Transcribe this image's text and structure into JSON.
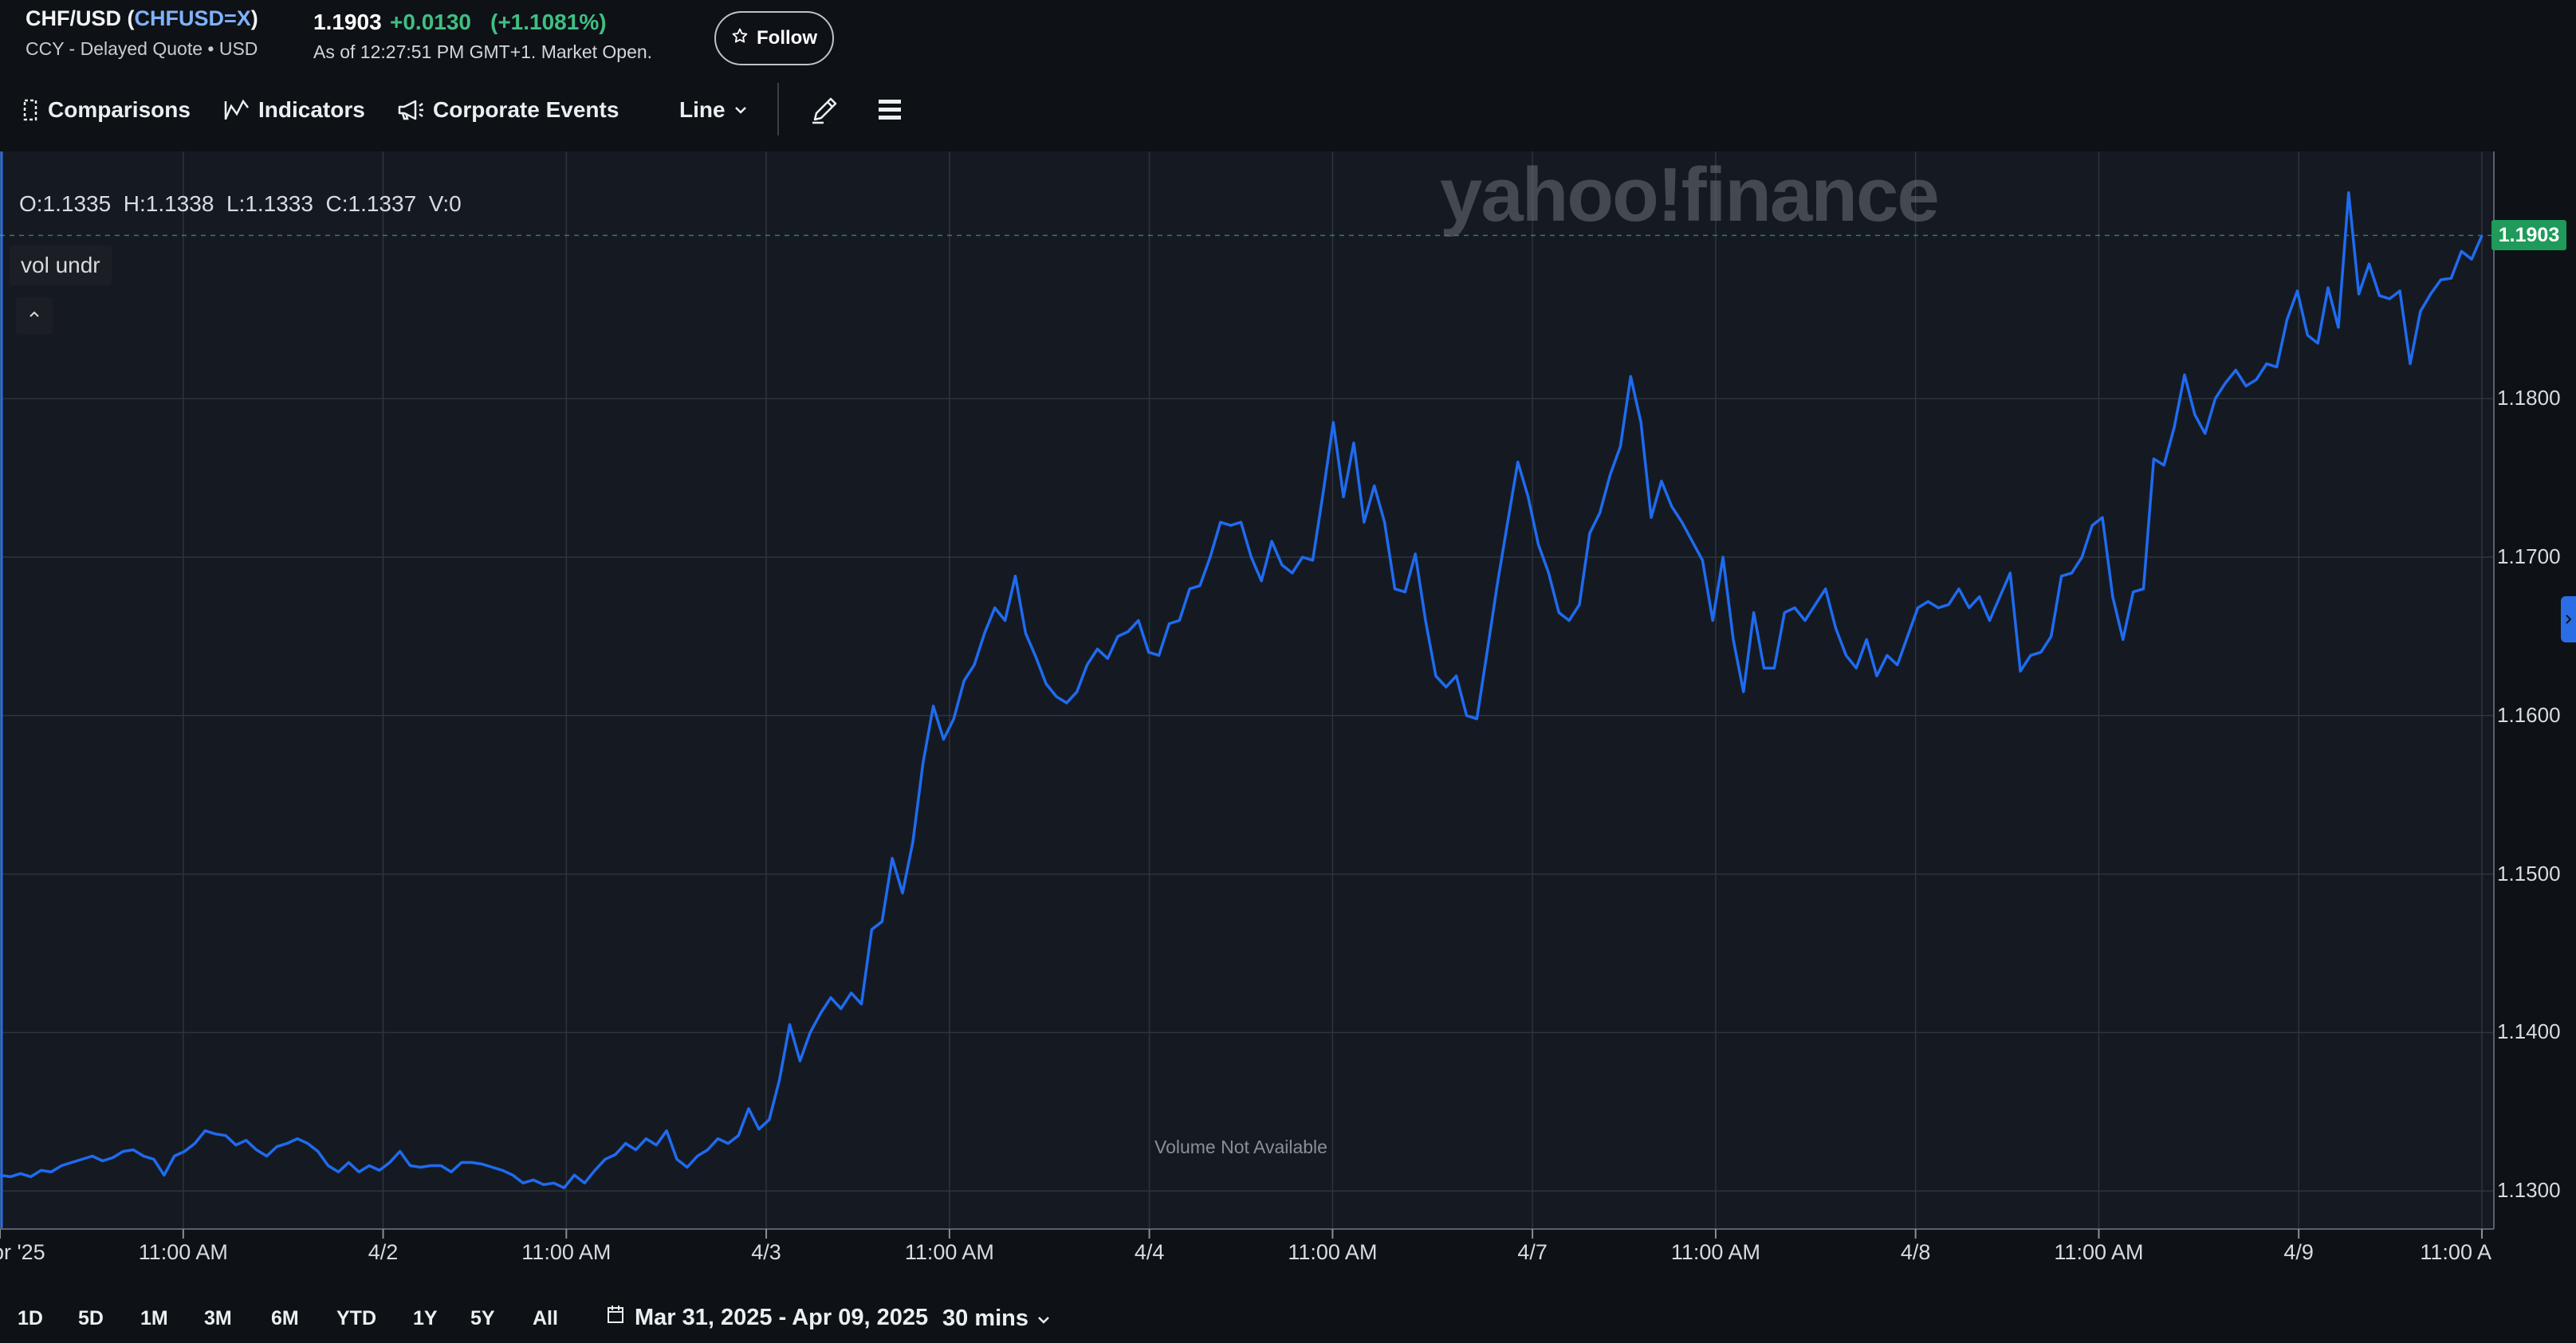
{
  "header": {
    "symbol_name": "CHF/USD",
    "symbol_ticker": "CHFUSD=X",
    "subtitle": "CCY - Delayed Quote • USD",
    "price": "1.1903",
    "change": "+0.0130",
    "change_pct": "(+1.1081%)",
    "as_of": "As of 12:27:51 PM GMT+1. Market Open.",
    "follow_label": "Follow"
  },
  "toolbar": {
    "comparisons": "Comparisons",
    "indicators": "Indicators",
    "corporate_events": "Corporate Events",
    "chart_type": "Line",
    "icons": [
      "comparisons-icon",
      "indicators-icon",
      "megaphone-icon",
      "chevron-down-icon",
      "pencil-icon",
      "menu-icon"
    ]
  },
  "chart_panel": {
    "ohlc": "O:1.1335  H:1.1338  L:1.1333  C:1.1337  V:0",
    "vol_label": "vol undr",
    "watermark": "yahoo!finance",
    "current_price_tag": "1.1903",
    "volume_note": "Volume Not Available"
  },
  "chart_data": {
    "type": "line",
    "title": "",
    "xlabel": "",
    "ylabel": "",
    "ylim": [
      1.1276,
      1.1956
    ],
    "yticks": [
      "1.1800",
      "1.1700",
      "1.1600",
      "1.1500",
      "1.1400",
      "1.1300"
    ],
    "ytick_values": [
      1.18,
      1.17,
      1.16,
      1.15,
      1.14,
      1.13
    ],
    "xticks": [
      "pr '25",
      "11:00 AM",
      "4/2",
      "11:00 AM",
      "4/3",
      "11:00 AM",
      "4/4",
      "11:00 AM",
      "4/7",
      "11:00 AM",
      "4/8",
      "11:00 AM",
      "4/9",
      "11:00 A"
    ],
    "xtick_index": [
      0,
      11,
      23,
      34,
      46,
      57,
      69,
      80,
      92,
      103,
      115,
      126,
      138,
      149
    ],
    "grid": true,
    "line_color": "#1f6bf0",
    "series": [
      {
        "values": [
          1.131,
          1.1309,
          1.1311,
          1.1309,
          1.1313,
          1.1312,
          1.1316,
          1.1318,
          1.132,
          1.1322,
          1.1319,
          1.1321,
          1.1325,
          1.1326,
          1.1322,
          1.132,
          1.131,
          1.1322,
          1.1325,
          1.133,
          1.1338,
          1.1336,
          1.1335,
          1.1329,
          1.1332,
          1.1326,
          1.1322,
          1.1328,
          1.133,
          1.1333,
          1.133,
          1.1325,
          1.1316,
          1.1312,
          1.1318,
          1.1312,
          1.1316,
          1.1313,
          1.1318,
          1.1325,
          1.1316,
          1.1315,
          1.1316,
          1.1316,
          1.1312,
          1.1318,
          1.1318,
          1.1317,
          1.1315,
          1.1313,
          1.131,
          1.1305,
          1.1307,
          1.1304,
          1.1305,
          1.1302,
          1.131,
          1.1305,
          1.1313,
          1.132,
          1.1323,
          1.133,
          1.1326,
          1.1333,
          1.1329,
          1.1338,
          1.132,
          1.1315,
          1.1322,
          1.1326,
          1.1333,
          1.133,
          1.1335,
          1.1352,
          1.1339,
          1.1345,
          1.137,
          1.1405,
          1.1382,
          1.14,
          1.1412,
          1.1422,
          1.1415,
          1.1425,
          1.1418,
          1.1465,
          1.147,
          1.151,
          1.1488,
          1.152,
          1.157,
          1.1606,
          1.1585,
          1.1598,
          1.1622,
          1.1632,
          1.1652,
          1.1668,
          1.166,
          1.1688,
          1.1652,
          1.1637,
          1.162,
          1.1612,
          1.1608,
          1.1615,
          1.1632,
          1.1642,
          1.1636,
          1.165,
          1.1653,
          1.166,
          1.164,
          1.1638,
          1.1658,
          1.166,
          1.168,
          1.1682,
          1.17,
          1.1722,
          1.172,
          1.1722,
          1.17,
          1.1685,
          1.171,
          1.1695,
          1.169,
          1.17,
          1.1698,
          1.174,
          1.1785,
          1.1738,
          1.1772,
          1.1722,
          1.1745,
          1.1722,
          1.168,
          1.1678,
          1.1702,
          1.166,
          1.1625,
          1.1618,
          1.1625,
          1.16,
          1.1598,
          1.164,
          1.1683,
          1.1722,
          1.176,
          1.1738,
          1.1708,
          1.169,
          1.1665,
          1.166,
          1.167,
          1.1715,
          1.1728,
          1.1752,
          1.177,
          1.1814,
          1.1785,
          1.1725,
          1.1748,
          1.1732,
          1.1722,
          1.171,
          1.1698,
          1.166,
          1.17,
          1.1648,
          1.1615,
          1.1665,
          1.163,
          1.163,
          1.1665,
          1.1668,
          1.166,
          1.167,
          1.168,
          1.1655,
          1.1638,
          1.163,
          1.1648,
          1.1625,
          1.1638,
          1.1632,
          1.165,
          1.1668,
          1.1672,
          1.1668,
          1.167,
          1.168,
          1.1668,
          1.1675,
          1.166,
          1.1675,
          1.169,
          1.1628,
          1.1638,
          1.164,
          1.165,
          1.1688,
          1.169,
          1.17,
          1.172,
          1.1725,
          1.1675,
          1.1648,
          1.1678,
          1.168,
          1.1762,
          1.1758,
          1.1782,
          1.1815,
          1.179,
          1.1778,
          1.18,
          1.181,
          1.1818,
          1.1808,
          1.1812,
          1.1822,
          1.182,
          1.185,
          1.1868,
          1.184,
          1.1835,
          1.187,
          1.1845,
          1.193,
          1.1866,
          1.1885,
          1.1865,
          1.1863,
          1.1868,
          1.1822,
          1.1855,
          1.1866,
          1.1875,
          1.1876,
          1.1893,
          1.1888,
          1.1903
        ]
      }
    ]
  },
  "ranges": [
    "1D",
    "5D",
    "1M",
    "3M",
    "6M",
    "YTD",
    "1Y",
    "5Y",
    "All"
  ],
  "date_range": "Mar 31, 2025 - Apr 09, 2025",
  "interval": "30 mins"
}
